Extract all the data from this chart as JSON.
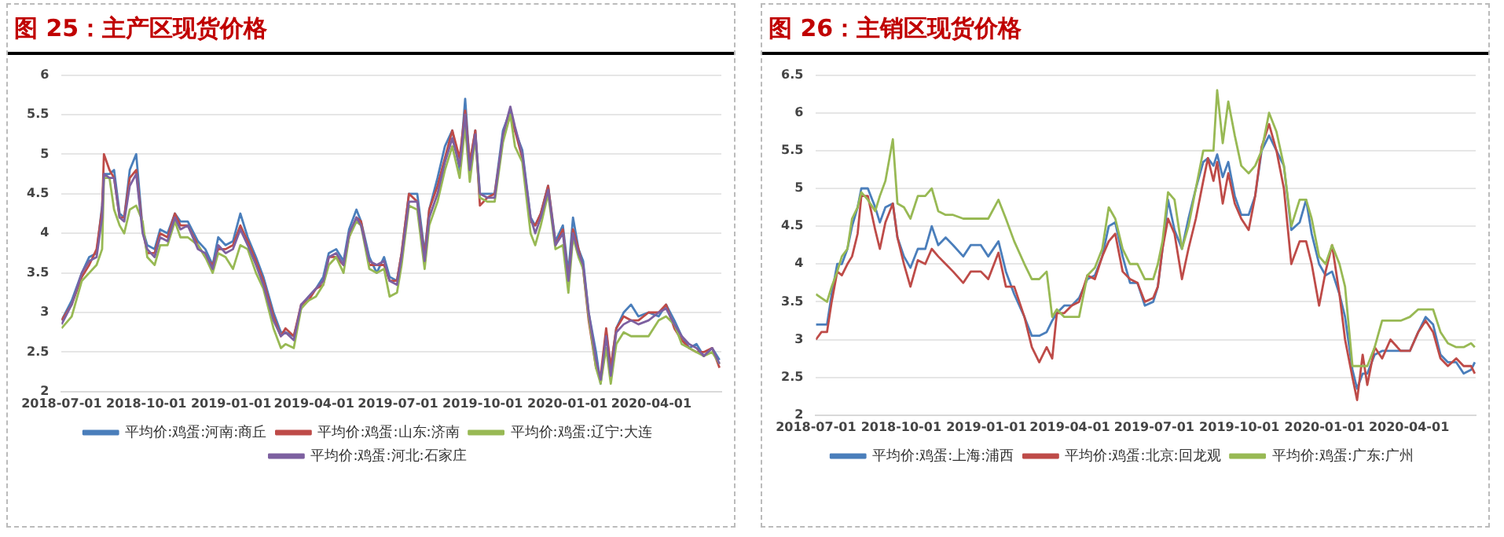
{
  "chart_data": [
    {
      "type": "line",
      "title": "图 25：主产区现货价格",
      "grid": "y",
      "legend": "bottom",
      "marker": "none",
      "line_style": "solid",
      "x": [
        "2018-07-01",
        "2018-07-12",
        "2018-07-23",
        "2018-07-31",
        "2018-08-08",
        "2018-08-14",
        "2018-08-16",
        "2018-08-22",
        "2018-08-27",
        "2018-09-02",
        "2018-09-07",
        "2018-09-13",
        "2018-09-20",
        "2018-09-27",
        "2018-10-02",
        "2018-10-10",
        "2018-10-16",
        "2018-10-24",
        "2018-11-01",
        "2018-11-07",
        "2018-11-15",
        "2018-11-26",
        "2018-12-04",
        "2018-12-12",
        "2018-12-18",
        "2018-12-26",
        "2019-01-03",
        "2019-01-11",
        "2019-01-19",
        "2019-01-28",
        "2019-02-05",
        "2019-02-16",
        "2019-02-24",
        "2019-03-01",
        "2019-03-10",
        "2019-03-18",
        "2019-03-26",
        "2019-04-03",
        "2019-04-11",
        "2019-04-17",
        "2019-04-25",
        "2019-05-03",
        "2019-05-09",
        "2019-05-17",
        "2019-05-22",
        "2019-05-31",
        "2019-06-08",
        "2019-06-16",
        "2019-06-22",
        "2019-06-30",
        "2019-07-05",
        "2019-07-13",
        "2019-07-22",
        "2019-07-30",
        "2019-08-04",
        "2019-08-13",
        "2019-08-21",
        "2019-08-29",
        "2019-09-06",
        "2019-09-12",
        "2019-09-17",
        "2019-09-23",
        "2019-09-28",
        "2019-10-06",
        "2019-10-14",
        "2019-10-23",
        "2019-10-31",
        "2019-11-05",
        "2019-11-13",
        "2019-11-22",
        "2019-11-27",
        "2019-12-03",
        "2019-12-11",
        "2019-12-19",
        "2019-12-27",
        "2020-01-02",
        "2020-01-07",
        "2020-01-13",
        "2020-01-18",
        "2020-01-24",
        "2020-02-01",
        "2020-02-06",
        "2020-02-12",
        "2020-02-17",
        "2020-02-23",
        "2020-03-02",
        "2020-03-10",
        "2020-03-18",
        "2020-03-29",
        "2020-04-09",
        "2020-04-17",
        "2020-04-26",
        "2020-05-04",
        "2020-05-12",
        "2020-05-20",
        "2020-05-28",
        "2020-06-06",
        "2020-06-14"
      ],
      "xlim": [
        "2018-07-01",
        "2020-06-16"
      ],
      "xticks": [
        "2018-07-01",
        "2018-10-01",
        "2019-01-01",
        "2019-04-01",
        "2019-07-01",
        "2019-10-01",
        "2020-01-01",
        "2020-04-01"
      ],
      "ylim": [
        2,
        6
      ],
      "yticks": [
        2,
        2.5,
        3,
        3.5,
        4,
        4.5,
        5,
        5.5,
        6
      ],
      "series": [
        {
          "name": "平均价:鸡蛋:河南:商丘",
          "color": "#4a7ebb",
          "values": [
            2.9,
            3.15,
            3.5,
            3.7,
            3.75,
            4.35,
            4.75,
            4.75,
            4.8,
            4.25,
            4.2,
            4.8,
            5.0,
            4.05,
            3.85,
            3.8,
            4.05,
            4.0,
            4.25,
            4.15,
            4.15,
            3.9,
            3.8,
            3.6,
            3.95,
            3.85,
            3.9,
            4.25,
            3.95,
            3.7,
            3.45,
            3.0,
            2.75,
            2.75,
            2.7,
            3.05,
            3.2,
            3.3,
            3.45,
            3.75,
            3.8,
            3.65,
            4.05,
            4.3,
            4.15,
            3.7,
            3.5,
            3.7,
            3.45,
            3.4,
            3.75,
            4.5,
            4.5,
            3.75,
            4.3,
            4.7,
            5.1,
            5.3,
            4.8,
            5.7,
            4.85,
            5.3,
            4.5,
            4.5,
            4.5,
            5.3,
            5.55,
            5.3,
            5.05,
            4.2,
            4.1,
            4.25,
            4.6,
            3.9,
            4.1,
            3.5,
            4.2,
            3.8,
            3.65,
            3.0,
            2.5,
            2.1,
            2.75,
            2.3,
            2.8,
            3.0,
            3.1,
            2.95,
            3.0,
            2.95,
            3.1,
            2.9,
            2.7,
            2.55,
            2.6,
            2.45,
            2.55,
            2.4
          ]
        },
        {
          "name": "平均价:鸡蛋:山东:济南",
          "color": "#be4b48",
          "values": [
            2.9,
            3.1,
            3.45,
            3.6,
            3.8,
            4.3,
            5.0,
            4.8,
            4.7,
            4.2,
            4.2,
            4.7,
            4.8,
            4.05,
            3.75,
            3.75,
            4.0,
            3.95,
            4.25,
            4.1,
            4.1,
            3.85,
            3.7,
            3.6,
            3.8,
            3.8,
            3.85,
            4.1,
            3.9,
            3.65,
            3.4,
            2.95,
            2.7,
            2.8,
            2.7,
            3.1,
            3.15,
            3.3,
            3.35,
            3.7,
            3.7,
            3.6,
            3.95,
            4.2,
            4.15,
            3.6,
            3.6,
            3.6,
            3.4,
            3.4,
            3.75,
            4.5,
            4.4,
            3.7,
            4.3,
            4.6,
            4.95,
            5.3,
            4.95,
            5.55,
            4.9,
            5.3,
            4.35,
            4.45,
            4.5,
            5.2,
            5.5,
            5.3,
            4.95,
            4.15,
            4.1,
            4.25,
            4.6,
            3.85,
            4.05,
            3.4,
            4.05,
            3.8,
            3.55,
            2.9,
            2.3,
            2.2,
            2.8,
            2.3,
            2.8,
            2.95,
            2.9,
            2.9,
            3.0,
            3.0,
            3.1,
            2.8,
            2.65,
            2.55,
            2.5,
            2.5,
            2.55,
            2.3
          ]
        },
        {
          "name": "平均价:鸡蛋:辽宁:大连",
          "color": "#98b954",
          "values": [
            2.8,
            2.95,
            3.4,
            3.5,
            3.6,
            3.8,
            4.7,
            4.7,
            4.3,
            4.1,
            4.0,
            4.3,
            4.35,
            4.15,
            3.7,
            3.6,
            3.85,
            3.85,
            4.15,
            3.95,
            3.95,
            3.85,
            3.7,
            3.5,
            3.75,
            3.7,
            3.55,
            3.85,
            3.8,
            3.5,
            3.3,
            2.8,
            2.55,
            2.6,
            2.55,
            3.05,
            3.15,
            3.2,
            3.35,
            3.6,
            3.7,
            3.5,
            3.95,
            4.15,
            4.1,
            3.55,
            3.5,
            3.55,
            3.2,
            3.25,
            3.6,
            4.35,
            4.3,
            3.55,
            4.1,
            4.4,
            4.8,
            5.1,
            4.7,
            5.35,
            4.65,
            5.2,
            4.45,
            4.4,
            4.4,
            5.15,
            5.5,
            5.1,
            4.9,
            4.0,
            3.85,
            4.1,
            4.5,
            3.8,
            3.85,
            3.25,
            3.95,
            3.7,
            3.55,
            2.95,
            2.3,
            2.1,
            2.55,
            2.1,
            2.6,
            2.75,
            2.7,
            2.7,
            2.7,
            2.9,
            2.95,
            2.85,
            2.6,
            2.55,
            2.5,
            2.45,
            2.5,
            2.35
          ]
        },
        {
          "name": "平均价:鸡蛋:河北:石家庄",
          "color": "#7d60a0",
          "values": [
            2.85,
            3.1,
            3.5,
            3.65,
            3.7,
            4.2,
            4.75,
            4.7,
            4.7,
            4.2,
            4.15,
            4.6,
            4.75,
            4.0,
            3.8,
            3.7,
            3.95,
            3.9,
            4.2,
            4.05,
            4.1,
            3.8,
            3.75,
            3.55,
            3.85,
            3.75,
            3.8,
            4.05,
            3.85,
            3.6,
            3.35,
            2.9,
            2.7,
            2.75,
            2.65,
            3.1,
            3.2,
            3.3,
            3.4,
            3.7,
            3.75,
            3.6,
            4.0,
            4.2,
            4.1,
            3.65,
            3.6,
            3.65,
            3.4,
            3.35,
            3.7,
            4.4,
            4.4,
            3.65,
            4.2,
            4.5,
            4.9,
            5.2,
            4.85,
            5.5,
            4.8,
            5.25,
            4.5,
            4.45,
            4.45,
            5.25,
            5.6,
            5.35,
            5.0,
            4.2,
            4.0,
            4.2,
            4.55,
            3.85,
            4.0,
            3.4,
            4.0,
            3.75,
            3.6,
            3.0,
            2.4,
            2.15,
            2.7,
            2.2,
            2.75,
            2.85,
            2.9,
            2.85,
            2.9,
            3.0,
            3.05,
            2.85,
            2.7,
            2.6,
            2.55,
            2.45,
            2.55,
            2.35
          ]
        }
      ]
    },
    {
      "type": "line",
      "title": "图 26：主销区现货价格",
      "grid": "y",
      "legend": "bottom",
      "marker": "none",
      "line_style": "solid",
      "x": [
        "2018-07-01",
        "2018-07-07",
        "2018-07-13",
        "2018-07-18",
        "2018-07-24",
        "2018-07-29",
        "2018-08-04",
        "2018-08-09",
        "2018-08-15",
        "2018-08-19",
        "2018-08-26",
        "2018-09-03",
        "2018-09-08",
        "2018-09-14",
        "2018-09-22",
        "2018-09-27",
        "2018-10-04",
        "2018-10-11",
        "2018-10-19",
        "2018-10-27",
        "2018-11-03",
        "2018-11-10",
        "2018-11-18",
        "2018-11-26",
        "2018-12-07",
        "2018-12-15",
        "2018-12-26",
        "2019-01-03",
        "2019-01-14",
        "2019-01-22",
        "2019-01-31",
        "2019-02-11",
        "2019-02-19",
        "2019-02-27",
        "2019-03-07",
        "2019-03-13",
        "2019-03-18",
        "2019-03-26",
        "2019-04-03",
        "2019-04-11",
        "2019-04-20",
        "2019-04-28",
        "2019-05-06",
        "2019-05-13",
        "2019-05-20",
        "2019-05-28",
        "2019-06-05",
        "2019-06-13",
        "2019-06-21",
        "2019-06-30",
        "2019-07-05",
        "2019-07-10",
        "2019-07-16",
        "2019-07-23",
        "2019-07-31",
        "2019-08-07",
        "2019-08-15",
        "2019-08-23",
        "2019-08-28",
        "2019-09-03",
        "2019-09-07",
        "2019-09-13",
        "2019-09-19",
        "2019-09-26",
        "2019-10-03",
        "2019-10-11",
        "2019-10-18",
        "2019-10-25",
        "2019-11-02",
        "2019-11-10",
        "2019-11-18",
        "2019-11-26",
        "2019-12-05",
        "2019-12-12",
        "2019-12-18",
        "2019-12-26",
        "2020-01-02",
        "2020-01-09",
        "2020-01-17",
        "2020-01-23",
        "2020-01-31",
        "2020-02-05",
        "2020-02-11",
        "2020-02-16",
        "2020-02-24",
        "2020-03-03",
        "2020-03-12",
        "2020-03-23",
        "2020-04-02",
        "2020-04-11",
        "2020-04-19",
        "2020-04-27",
        "2020-05-05",
        "2020-05-13",
        "2020-05-22",
        "2020-05-30",
        "2020-06-07",
        "2020-06-11"
      ],
      "xlim": [
        "2018-07-01",
        "2020-06-12"
      ],
      "xticks": [
        "2018-07-01",
        "2018-10-01",
        "2019-01-01",
        "2019-04-01",
        "2019-07-01",
        "2019-10-01",
        "2020-01-01",
        "2020-04-01"
      ],
      "ylim": [
        2,
        6.5
      ],
      "yticks": [
        2,
        2.5,
        3,
        3.5,
        4,
        4.5,
        5,
        5.5,
        6,
        6.5
      ],
      "series": [
        {
          "name": "平均价:鸡蛋:上海:浦西",
          "color": "#4a7ebb",
          "values": [
            3.2,
            3.2,
            3.2,
            3.6,
            4.0,
            4.0,
            4.2,
            4.5,
            4.75,
            5.0,
            5.0,
            4.75,
            4.55,
            4.75,
            4.8,
            4.35,
            4.1,
            3.95,
            4.2,
            4.2,
            4.5,
            4.25,
            4.35,
            4.25,
            4.1,
            4.25,
            4.25,
            4.1,
            4.3,
            3.9,
            3.6,
            3.3,
            3.05,
            3.05,
            3.1,
            3.25,
            3.35,
            3.45,
            3.45,
            3.55,
            3.8,
            3.85,
            4.1,
            4.5,
            4.55,
            4.1,
            3.75,
            3.75,
            3.45,
            3.5,
            3.7,
            4.2,
            4.85,
            4.45,
            4.2,
            4.6,
            5.0,
            5.35,
            5.4,
            5.3,
            5.45,
            5.15,
            5.35,
            4.9,
            4.65,
            4.65,
            4.9,
            5.5,
            5.7,
            5.5,
            5.3,
            4.45,
            4.55,
            4.85,
            4.4,
            4.0,
            3.85,
            3.9,
            3.6,
            3.3,
            2.6,
            2.35,
            2.55,
            2.55,
            2.8,
            2.85,
            2.85,
            2.85,
            2.85,
            3.1,
            3.3,
            3.2,
            2.8,
            2.7,
            2.7,
            2.55,
            2.6,
            2.7
          ]
        },
        {
          "name": "平均价:鸡蛋:北京:回龙观",
          "color": "#be4b48",
          "values": [
            3.0,
            3.1,
            3.1,
            3.5,
            3.9,
            3.85,
            4.0,
            4.1,
            4.4,
            4.9,
            4.9,
            4.45,
            4.2,
            4.55,
            4.8,
            4.35,
            4.0,
            3.7,
            4.05,
            4.0,
            4.2,
            4.1,
            4.0,
            3.9,
            3.75,
            3.9,
            3.9,
            3.8,
            4.15,
            3.7,
            3.7,
            3.3,
            2.9,
            2.7,
            2.9,
            2.75,
            3.35,
            3.35,
            3.45,
            3.5,
            3.85,
            3.8,
            4.1,
            4.3,
            4.4,
            3.9,
            3.8,
            3.75,
            3.5,
            3.55,
            3.7,
            4.2,
            4.6,
            4.4,
            3.8,
            4.2,
            4.6,
            5.1,
            5.4,
            5.1,
            5.35,
            4.8,
            5.2,
            4.8,
            4.6,
            4.45,
            4.9,
            5.55,
            5.85,
            5.5,
            5.0,
            4.0,
            4.3,
            4.3,
            4.0,
            3.45,
            3.9,
            4.25,
            3.6,
            3.0,
            2.5,
            2.2,
            2.8,
            2.4,
            2.9,
            2.75,
            3.0,
            2.85,
            2.85,
            3.1,
            3.25,
            3.1,
            2.75,
            2.65,
            2.75,
            2.65,
            2.65,
            2.55
          ]
        },
        {
          "name": "平均价:鸡蛋:广东:广州",
          "color": "#98b954",
          "values": [
            3.6,
            3.55,
            3.5,
            3.7,
            3.9,
            4.1,
            4.2,
            4.6,
            4.75,
            4.95,
            4.85,
            4.7,
            4.9,
            5.1,
            5.65,
            4.8,
            4.75,
            4.6,
            4.9,
            4.9,
            5.0,
            4.7,
            4.65,
            4.65,
            4.6,
            4.6,
            4.6,
            4.6,
            4.85,
            4.6,
            4.3,
            4.0,
            3.8,
            3.8,
            3.9,
            3.3,
            3.4,
            3.3,
            3.3,
            3.3,
            3.85,
            3.95,
            4.2,
            4.75,
            4.6,
            4.2,
            4.0,
            4.0,
            3.8,
            3.8,
            4.0,
            4.3,
            4.95,
            4.85,
            4.2,
            4.5,
            5.0,
            5.5,
            5.5,
            5.5,
            6.3,
            5.6,
            6.15,
            5.7,
            5.3,
            5.2,
            5.3,
            5.5,
            6.0,
            5.75,
            5.3,
            4.5,
            4.85,
            4.85,
            4.6,
            4.1,
            4.0,
            4.25,
            4.0,
            3.7,
            2.65,
            2.65,
            2.65,
            2.65,
            2.9,
            3.25,
            3.25,
            3.25,
            3.3,
            3.4,
            3.4,
            3.4,
            3.1,
            2.95,
            2.9,
            2.9,
            2.95,
            2.9
          ]
        }
      ]
    }
  ]
}
